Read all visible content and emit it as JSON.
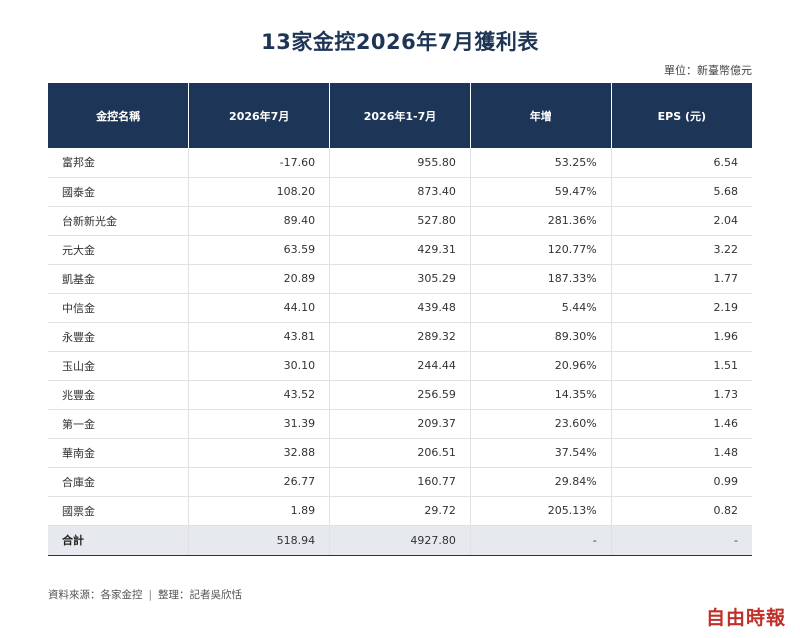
{
  "title": "13家金控2026年7月獲利表",
  "unit": "單位：新臺幣億元",
  "headers": [
    "金控名稱",
    "2026年7月",
    "2026年1-7月",
    "年增",
    "EPS (元)"
  ],
  "rows": [
    {
      "name": "富邦金",
      "month": "-17.60",
      "ytd": "955.80",
      "yoy": "53.25%",
      "eps": "6.54"
    },
    {
      "name": "國泰金",
      "month": "108.20",
      "ytd": "873.40",
      "yoy": "59.47%",
      "eps": "5.68"
    },
    {
      "name": "台新新光金",
      "month": "89.40",
      "ytd": "527.80",
      "yoy": "281.36%",
      "eps": "2.04"
    },
    {
      "name": "元大金",
      "month": "63.59",
      "ytd": "429.31",
      "yoy": "120.77%",
      "eps": "3.22"
    },
    {
      "name": "凱基金",
      "month": "20.89",
      "ytd": "305.29",
      "yoy": "187.33%",
      "eps": "1.77"
    },
    {
      "name": "中信金",
      "month": "44.10",
      "ytd": "439.48",
      "yoy": "5.44%",
      "eps": "2.19"
    },
    {
      "name": "永豐金",
      "month": "43.81",
      "ytd": "289.32",
      "yoy": "89.30%",
      "eps": "1.96"
    },
    {
      "name": "玉山金",
      "month": "30.10",
      "ytd": "244.44",
      "yoy": "20.96%",
      "eps": "1.51"
    },
    {
      "name": "兆豐金",
      "month": "43.52",
      "ytd": "256.59",
      "yoy": "14.35%",
      "eps": "1.73"
    },
    {
      "name": "第一金",
      "month": "31.39",
      "ytd": "209.37",
      "yoy": "23.60%",
      "eps": "1.46"
    },
    {
      "name": "華南金",
      "month": "32.88",
      "ytd": "206.51",
      "yoy": "37.54%",
      "eps": "1.48"
    },
    {
      "name": "合庫金",
      "month": "26.77",
      "ytd": "160.77",
      "yoy": "29.84%",
      "eps": "0.99"
    },
    {
      "name": "國票金",
      "month": "1.89",
      "ytd": "29.72",
      "yoy": "205.13%",
      "eps": "0.82"
    }
  ],
  "total": {
    "name": "合計",
    "month": "518.94",
    "ytd": "4927.80",
    "yoy": "-",
    "eps": "-"
  },
  "source": {
    "left": "資料來源：各家金控",
    "separator": "|",
    "right": "整理：記者吳欣恬"
  },
  "logo": "自由時報",
  "colors": {
    "header_bg": "#1d3557",
    "title": "#1f3556",
    "total_bg": "#e6e9ee",
    "logo": "#c0302a"
  }
}
